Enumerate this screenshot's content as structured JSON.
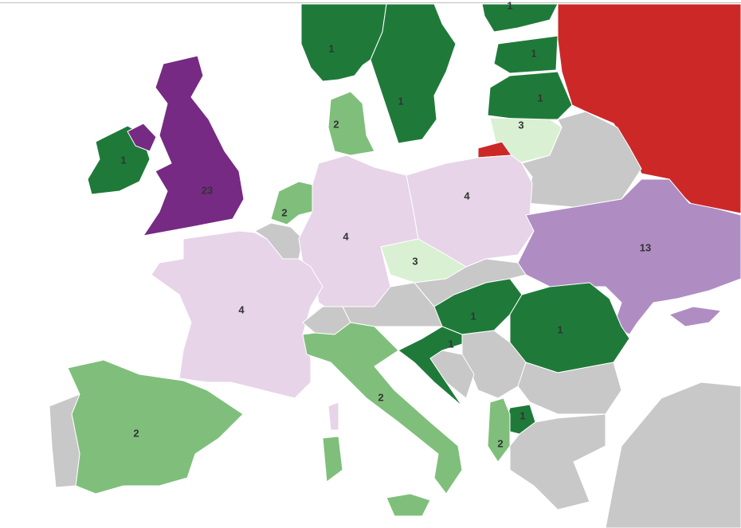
{
  "map": {
    "type": "choropleth",
    "colors": {
      "dark_green": "#1f7a3a",
      "medium_green": "#7fbf7b",
      "light_green": "#d9f0d3",
      "light_purple": "#e7d4e8",
      "medium_purple": "#af8dc3",
      "dark_purple": "#762a83",
      "no_data": "#c8c8c8",
      "highlight_red": "#cc2828"
    },
    "regions": [
      {
        "id": "ireland",
        "value": "1",
        "color": "dark_green"
      },
      {
        "id": "northern-ireland",
        "value": "",
        "color": "dark_purple"
      },
      {
        "id": "united-kingdom",
        "value": "23",
        "color": "dark_purple"
      },
      {
        "id": "norway",
        "value": "1",
        "color": "dark_green"
      },
      {
        "id": "sweden",
        "value": "1",
        "color": "dark_green"
      },
      {
        "id": "finland",
        "value": "1",
        "color": "dark_green"
      },
      {
        "id": "estonia",
        "value": "1",
        "color": "dark_green"
      },
      {
        "id": "latvia",
        "value": "1",
        "color": "dark_green"
      },
      {
        "id": "lithuania",
        "value": "3",
        "color": "light_green"
      },
      {
        "id": "kaliningrad",
        "value": "",
        "color": "highlight_red"
      },
      {
        "id": "russia",
        "value": "",
        "color": "highlight_red"
      },
      {
        "id": "belarus",
        "value": "",
        "color": "no_data"
      },
      {
        "id": "denmark",
        "value": "2",
        "color": "medium_green"
      },
      {
        "id": "netherlands",
        "value": "2",
        "color": "medium_green"
      },
      {
        "id": "belgium",
        "value": "",
        "color": "no_data"
      },
      {
        "id": "germany",
        "value": "4",
        "color": "light_purple"
      },
      {
        "id": "poland",
        "value": "4",
        "color": "light_purple"
      },
      {
        "id": "czechia",
        "value": "3",
        "color": "light_green"
      },
      {
        "id": "ukraine",
        "value": "13",
        "color": "medium_purple"
      },
      {
        "id": "crimea",
        "value": "",
        "color": "medium_purple"
      },
      {
        "id": "france",
        "value": "4",
        "color": "light_purple"
      },
      {
        "id": "corsica",
        "value": "",
        "color": "light_purple"
      },
      {
        "id": "spain",
        "value": "2",
        "color": "medium_green"
      },
      {
        "id": "portugal",
        "value": "",
        "color": "no_data"
      },
      {
        "id": "switzerland",
        "value": "",
        "color": "no_data"
      },
      {
        "id": "austria",
        "value": "",
        "color": "no_data"
      },
      {
        "id": "slovakia",
        "value": "",
        "color": "no_data"
      },
      {
        "id": "italy",
        "value": "2",
        "color": "medium_green"
      },
      {
        "id": "sardinia",
        "value": "",
        "color": "medium_green"
      },
      {
        "id": "sicily",
        "value": "",
        "color": "medium_green"
      },
      {
        "id": "hungary",
        "value": "1",
        "color": "dark_green"
      },
      {
        "id": "romania",
        "value": "1",
        "color": "dark_green"
      },
      {
        "id": "croatia",
        "value": "1",
        "color": "dark_green"
      },
      {
        "id": "serbia",
        "value": "",
        "color": "no_data"
      },
      {
        "id": "bosnia",
        "value": "",
        "color": "no_data"
      },
      {
        "id": "bulgaria",
        "value": "",
        "color": "no_data"
      },
      {
        "id": "north-macedonia",
        "value": "1",
        "color": "dark_green"
      },
      {
        "id": "albania",
        "value": "2",
        "color": "medium_green"
      },
      {
        "id": "greece",
        "value": "",
        "color": "no_data"
      },
      {
        "id": "turkey",
        "value": "",
        "color": "no_data"
      }
    ]
  }
}
